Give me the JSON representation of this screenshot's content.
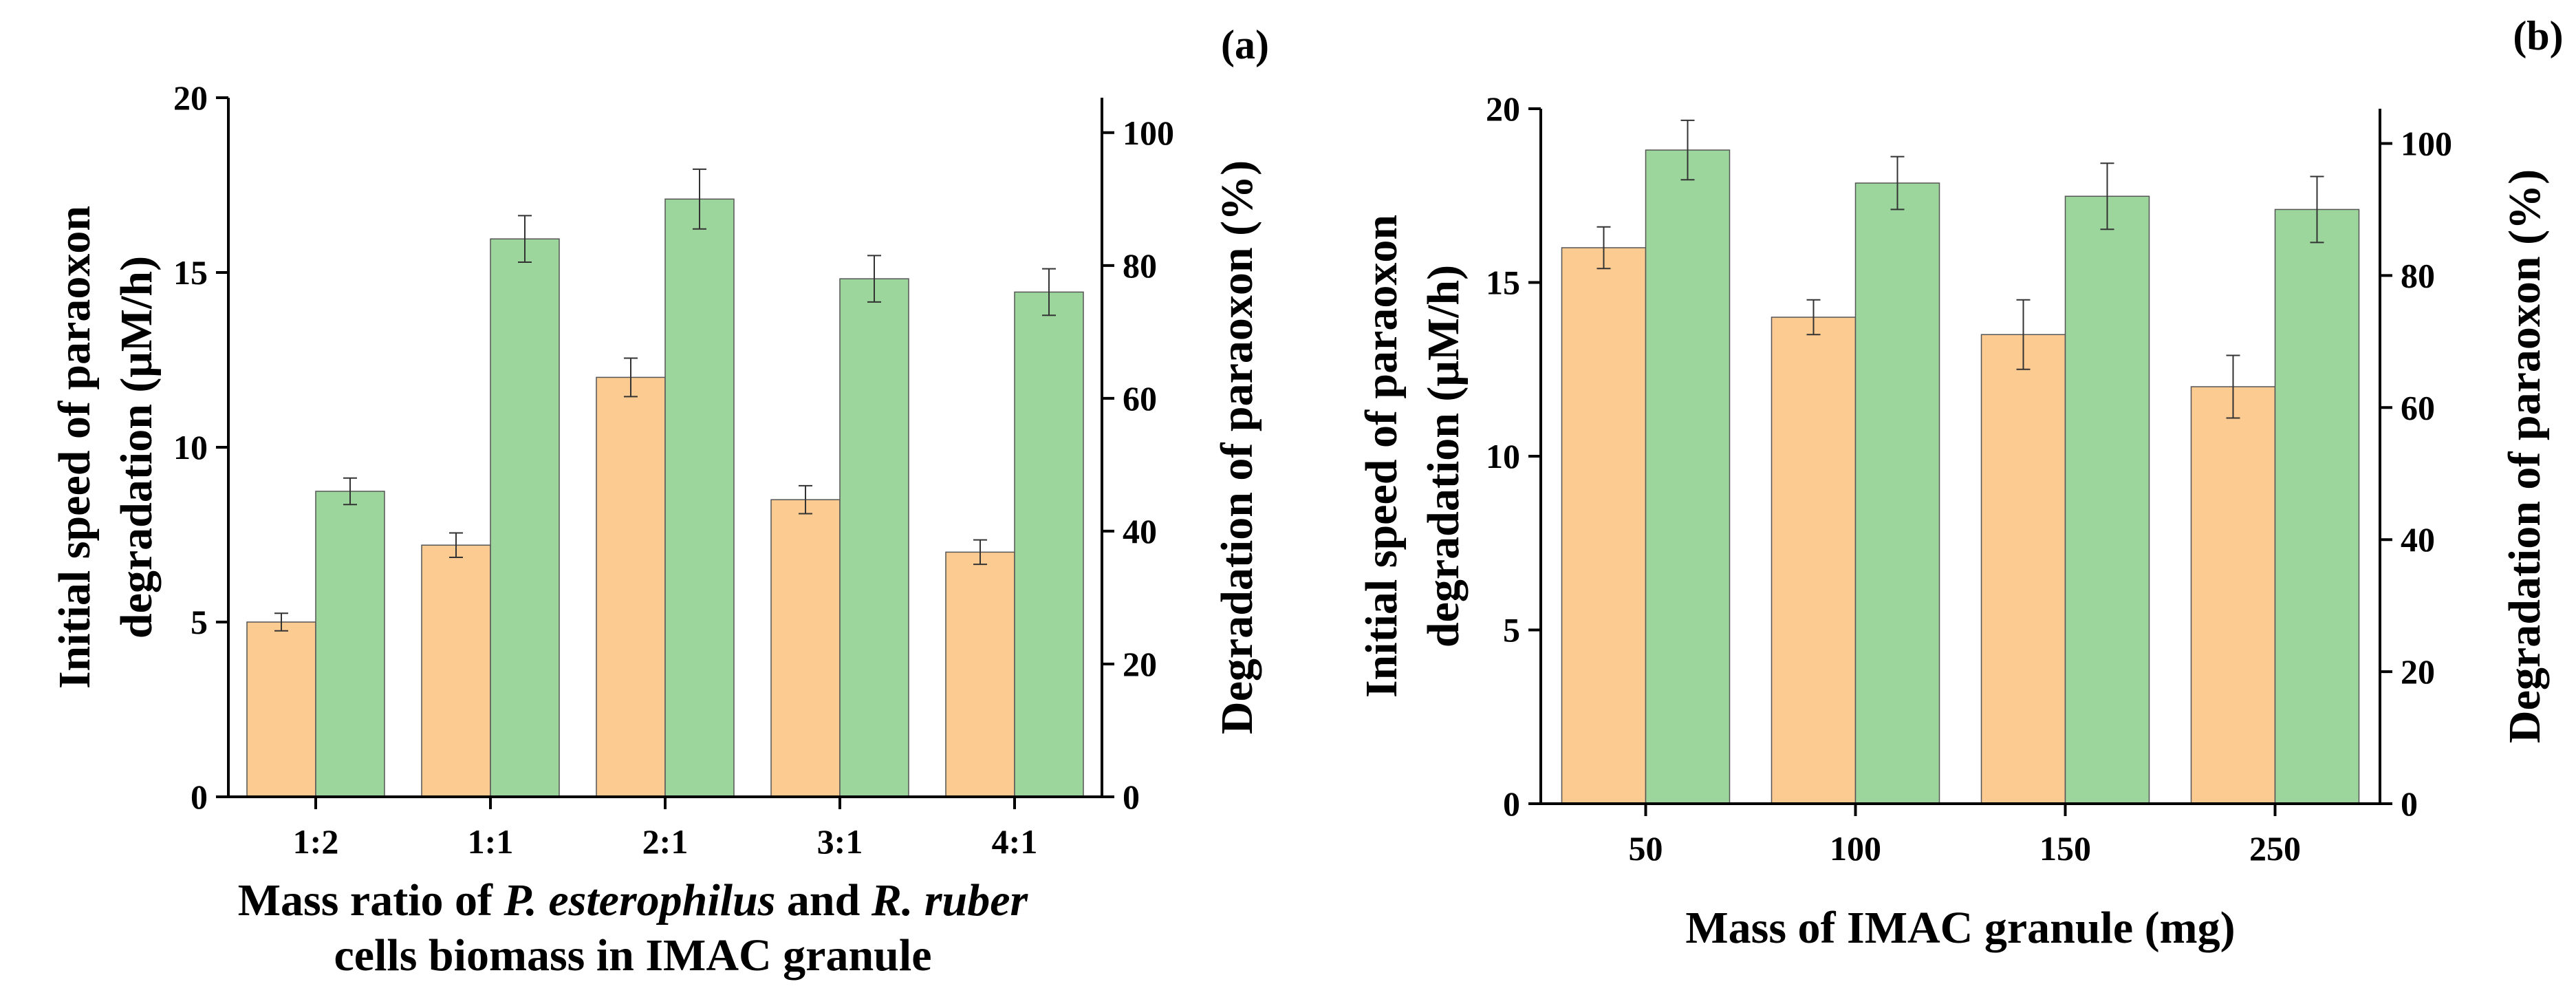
{
  "chart_data": [
    {
      "type": "bar",
      "panel_label": "(a)",
      "categories": [
        "1:2",
        "1:1",
        "2:1",
        "3:1",
        "4:1"
      ],
      "series": [
        {
          "name": "Initial speed of paraoxon degradation (μM/h)",
          "axis": "left",
          "color": "#fccb92",
          "values": [
            5.0,
            7.2,
            12.0,
            8.5,
            7.0
          ],
          "errors": [
            0.25,
            0.35,
            0.55,
            0.4,
            0.35
          ]
        },
        {
          "name": "Degradation of paraoxon (%)",
          "axis": "right",
          "color": "#9dd69d",
          "values": [
            46,
            84,
            90,
            78,
            76
          ],
          "errors": [
            2,
            3.5,
            4.5,
            3.5,
            3.5
          ]
        }
      ],
      "y_left": {
        "label_line1": "Initial speed of paraoxon",
        "label_line2": "degradation (μM/h)",
        "ylim": [
          0,
          20
        ],
        "ticks": [
          0,
          5,
          10,
          15,
          20
        ]
      },
      "y_right": {
        "label": "Degradation of paraoxon (%)",
        "ylim": [
          0,
          105.26
        ],
        "ticks": [
          0,
          20,
          40,
          60,
          80,
          100
        ]
      },
      "xlabel": {
        "line1": [
          {
            "text": "Mass ratio of ",
            "italic": false
          },
          {
            "text": "P. esterophilus",
            "italic": true
          },
          {
            "text": " and ",
            "italic": false
          },
          {
            "text": "R. ruber",
            "italic": true
          }
        ],
        "line2": "cells biomass in IMAC granule"
      }
    },
    {
      "type": "bar",
      "panel_label": "(b)",
      "categories": [
        "50",
        "100",
        "150",
        "250"
      ],
      "series": [
        {
          "name": "Initial speed of paraoxon degradation (μM/h)",
          "axis": "left",
          "color": "#fccb92",
          "values": [
            16.0,
            14.0,
            13.5,
            12.0
          ],
          "errors": [
            0.6,
            0.5,
            1.0,
            0.9
          ]
        },
        {
          "name": "Degradation of paraoxon (%)",
          "axis": "right",
          "color": "#9dd69d",
          "values": [
            99,
            94,
            92,
            90
          ],
          "errors": [
            4.5,
            4,
            5,
            5
          ]
        }
      ],
      "y_left": {
        "label_line1": "Initial speed of paraoxon",
        "label_line2": "degradation (μM/h)",
        "ylim": [
          0,
          20
        ],
        "ticks": [
          0,
          5,
          10,
          15,
          20
        ]
      },
      "y_right": {
        "label": "Degradation of paraoxon (%)",
        "ylim": [
          0,
          105.26
        ],
        "ticks": [
          0,
          20,
          40,
          60,
          80,
          100
        ]
      },
      "xlabel": {
        "line1": [
          {
            "text": "Mass of IMAC granule  (mg)",
            "italic": false
          }
        ],
        "line2": ""
      }
    }
  ]
}
